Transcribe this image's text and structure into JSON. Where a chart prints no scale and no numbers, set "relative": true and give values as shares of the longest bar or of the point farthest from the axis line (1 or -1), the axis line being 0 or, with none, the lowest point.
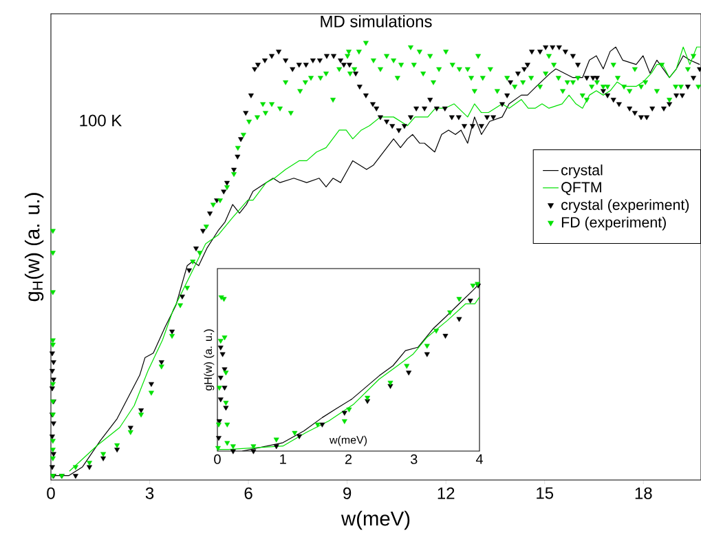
{
  "chart_data": [
    {
      "type": "line",
      "title": "MD simulations",
      "xlabel": "w(meV)",
      "ylabel": "g$_{H}$(w) (a. u.)",
      "annotations": [
        "100 K"
      ],
      "relative": true,
      "xlim": [
        0,
        19.75
      ],
      "xticks": [
        0,
        3,
        6,
        9,
        12,
        15,
        18
      ],
      "grid": false,
      "legend": "right",
      "series": [
        {
          "name": "crystal",
          "color": "#000000",
          "marker": "none",
          "x": [
            0.13,
            0.54,
            0.96,
            1.5,
            2.01,
            2.7,
            2.86,
            3.11,
            3.47,
            3.8,
            4.14,
            4.31,
            4.49,
            4.74,
            5.08,
            5.29,
            5.52,
            5.73,
            5.94,
            6.14,
            6.54,
            6.75,
            6.96,
            7.38,
            7.77,
            8.15,
            8.36,
            8.57,
            8.8,
            9.17,
            9.59,
            9.8,
            10.41,
            10.62,
            10.83,
            10.99,
            11.2,
            11.35,
            11.66,
            11.87,
            12.08,
            12.29,
            12.46,
            12.66,
            12.87,
            13.08,
            13.33,
            13.71,
            13.92,
            14.29,
            14.48,
            14.75,
            15.17,
            15.34,
            15.86,
            16.15,
            16.36,
            16.57,
            16.78,
            16.99,
            17.16,
            17.37,
            17.78,
            17.99,
            18.2,
            18.41,
            18.79,
            19.0,
            19.21,
            19.41,
            19.71
          ],
          "values": [
            0.01,
            0.01,
            0.03,
            0.09,
            0.14,
            0.24,
            0.28,
            0.29,
            0.35,
            0.4,
            0.49,
            0.5,
            0.49,
            0.53,
            0.57,
            0.59,
            0.63,
            0.61,
            0.63,
            0.66,
            0.68,
            0.69,
            0.68,
            0.69,
            0.68,
            0.69,
            0.67,
            0.69,
            0.68,
            0.73,
            0.71,
            0.72,
            0.78,
            0.76,
            0.78,
            0.79,
            0.77,
            0.77,
            0.75,
            0.79,
            0.8,
            0.79,
            0.8,
            0.77,
            0.83,
            0.79,
            0.82,
            0.83,
            0.86,
            0.88,
            0.88,
            0.9,
            0.93,
            0.94,
            0.92,
            0.92,
            0.96,
            0.97,
            0.94,
            0.98,
            0.99,
            0.96,
            0.95,
            0.97,
            0.93,
            0.96,
            0.92,
            0.94,
            0.97,
            0.96,
            0.95
          ]
        },
        {
          "name": "QFTM",
          "color": "#00e000",
          "marker": "none",
          "x": [
            0.56,
            1.42,
            2.09,
            2.53,
            2.95,
            3.39,
            3.72,
            4.05,
            4.31,
            4.7,
            5.08,
            5.52,
            5.98,
            6.14,
            6.54,
            6.79,
            7.13,
            7.54,
            7.77,
            8.07,
            8.36,
            8.76,
            8.97,
            9.17,
            9.43,
            9.68,
            10.01,
            10.41,
            10.83,
            11.06,
            11.45,
            11.68,
            11.97,
            12.25,
            12.66,
            12.87,
            13.08,
            13.29,
            13.71,
            13.92,
            14.29,
            14.5,
            14.71,
            14.92,
            15.13,
            15.53,
            15.74,
            15.95,
            16.15,
            16.36,
            16.57,
            16.78,
            16.99,
            17.2,
            17.41,
            17.78,
            17.99,
            18.24,
            18.41,
            18.58,
            18.79,
            19.0,
            19.21,
            19.41,
            19.62,
            19.73
          ],
          "values": [
            0.02,
            0.08,
            0.12,
            0.17,
            0.25,
            0.32,
            0.39,
            0.44,
            0.48,
            0.54,
            0.56,
            0.6,
            0.64,
            0.64,
            0.68,
            0.69,
            0.71,
            0.73,
            0.73,
            0.75,
            0.76,
            0.8,
            0.8,
            0.78,
            0.8,
            0.81,
            0.83,
            0.83,
            0.81,
            0.83,
            0.83,
            0.85,
            0.85,
            0.86,
            0.83,
            0.86,
            0.84,
            0.84,
            0.86,
            0.85,
            0.87,
            0.85,
            0.85,
            0.86,
            0.85,
            0.86,
            0.88,
            0.86,
            0.85,
            0.88,
            0.89,
            0.88,
            0.89,
            0.91,
            0.9,
            0.9,
            0.91,
            0.93,
            0.95,
            0.95,
            0.92,
            0.94,
            0.99,
            0.95,
            0.99,
            0.99
          ]
        },
        {
          "name": "crystal (experiment)",
          "type": "scatter",
          "color": "#000000",
          "marker": "triangle",
          "x": [
            0.04,
            0.08,
            0.04,
            0.08,
            0.04,
            0.08,
            0.04,
            0.08,
            0.04,
            0.08,
            0.04,
            0.08,
            0.33,
            0.75,
            1.17,
            1.59,
            2.01,
            2.42,
            2.74,
            3.05,
            3.36,
            3.68,
            3.99,
            4.2,
            4.41,
            4.62,
            4.83,
            5.04,
            5.25,
            5.35,
            5.56,
            5.67,
            5.77,
            5.92,
            6.08,
            6.19,
            6.29,
            6.5,
            6.71,
            6.92,
            7.13,
            7.34,
            7.54,
            7.75,
            7.96,
            8.17,
            8.38,
            8.59,
            8.8,
            8.9,
            9.07,
            9.26,
            9.38,
            9.57,
            9.78,
            9.89,
            10.01,
            10.2,
            10.37,
            10.57,
            10.74,
            10.93,
            11.1,
            11.35,
            11.52,
            11.72,
            11.97,
            12.18,
            12.39,
            12.56,
            12.81,
            13.08,
            13.25,
            13.44,
            13.71,
            13.86,
            13.96,
            14.19,
            14.38,
            14.48,
            14.61,
            14.86,
            15.03,
            15.24,
            15.44,
            15.63,
            15.86,
            16.01,
            16.28,
            16.47,
            16.59,
            16.78,
            16.91,
            17.09,
            17.26,
            17.58,
            17.74,
            17.93,
            18.1,
            18.27,
            18.62,
            18.79,
            19.0,
            19.18,
            19.35,
            19.52,
            19.71
          ],
          "values": [
            0.29,
            0.27,
            0.25,
            0.23,
            0.21,
            0.18,
            0.15,
            0.13,
            0.1,
            0.06,
            0.03,
            0.01,
            0.01,
            0.01,
            0.03,
            0.05,
            0.07,
            0.12,
            0.16,
            0.22,
            0.27,
            0.34,
            0.42,
            0.48,
            0.53,
            0.57,
            0.61,
            0.64,
            0.66,
            0.68,
            0.71,
            0.74,
            0.78,
            0.84,
            0.88,
            0.94,
            0.95,
            0.96,
            0.97,
            0.98,
            0.96,
            0.94,
            0.95,
            0.95,
            0.96,
            0.96,
            0.97,
            0.97,
            0.96,
            0.95,
            0.95,
            0.93,
            0.9,
            0.88,
            0.86,
            0.85,
            0.83,
            0.82,
            0.81,
            0.8,
            0.81,
            0.83,
            0.85,
            0.85,
            0.87,
            0.85,
            0.85,
            0.83,
            0.83,
            0.81,
            0.81,
            0.81,
            0.83,
            0.83,
            0.86,
            0.88,
            0.91,
            0.93,
            0.94,
            0.95,
            0.98,
            0.98,
            0.99,
            0.99,
            0.99,
            0.98,
            0.97,
            0.95,
            0.92,
            0.92,
            0.92,
            0.89,
            0.88,
            0.87,
            0.86,
            0.85,
            0.84,
            0.83,
            0.83,
            0.85,
            0.85,
            0.86,
            0.88,
            0.88,
            0.9,
            0.92,
            0.94
          ]
        },
        {
          "name": "FD (experiment)",
          "type": "scatter",
          "color": "#00e000",
          "marker": "triangle",
          "x": [
            0.06,
            0.06,
            0.06,
            0.06,
            0.06,
            0.06,
            0.06,
            0.06,
            0.06,
            0.06,
            0.06,
            0.06,
            0.33,
            0.75,
            1.17,
            1.59,
            2.01,
            2.42,
            2.74,
            3.05,
            3.36,
            3.68,
            3.93,
            4.14,
            4.31,
            4.52,
            4.72,
            4.93,
            5.14,
            5.35,
            5.56,
            5.68,
            5.85,
            6.02,
            6.27,
            6.44,
            6.52,
            6.71,
            6.96,
            7.13,
            7.29,
            7.57,
            7.73,
            7.9,
            8.19,
            8.36,
            8.57,
            8.76,
            9.01,
            9.09,
            9.05,
            9.22,
            9.36,
            9.57,
            9.8,
            10.01,
            10.2,
            10.41,
            10.53,
            10.64,
            10.93,
            11.03,
            11.2,
            11.31,
            11.52,
            11.62,
            11.79,
            12.0,
            12.2,
            12.41,
            12.66,
            12.77,
            12.87,
            12.98,
            13.12,
            13.35,
            13.56,
            13.86,
            14.09,
            14.34,
            14.59,
            14.86,
            15.03,
            15.13,
            15.28,
            15.42,
            15.55,
            15.69,
            15.86,
            16.01,
            16.15,
            16.28,
            16.43,
            16.59,
            16.78,
            16.91,
            17.09,
            17.22,
            17.41,
            17.58,
            17.74,
            17.93,
            18.06,
            18.41,
            18.56,
            18.79,
            18.98,
            19.14,
            19.35,
            19.52,
            19.67
          ],
          "values": [
            0.57,
            0.52,
            0.43,
            0.32,
            0.31,
            0.22,
            0.18,
            0.15,
            0.09,
            0.07,
            0.05,
            0.01,
            0.01,
            0.03,
            0.04,
            0.06,
            0.08,
            0.11,
            0.15,
            0.2,
            0.26,
            0.33,
            0.4,
            0.44,
            0.5,
            0.52,
            0.58,
            0.63,
            0.64,
            0.67,
            0.7,
            0.76,
            0.79,
            0.82,
            0.83,
            0.86,
            0.84,
            0.86,
            0.85,
            0.91,
            0.84,
            0.89,
            0.91,
            0.92,
            0.92,
            0.93,
            0.87,
            0.94,
            0.97,
            0.93,
            0.98,
            0.94,
            0.98,
            1.0,
            0.96,
            0.94,
            0.97,
            0.96,
            0.92,
            0.95,
            0.99,
            0.95,
            0.98,
            0.93,
            0.97,
            0.91,
            0.94,
            0.98,
            0.95,
            0.94,
            0.94,
            0.92,
            0.89,
            0.97,
            0.92,
            0.94,
            0.89,
            0.92,
            0.9,
            0.91,
            0.92,
            0.9,
            0.93,
            0.97,
            0.95,
            0.92,
            0.89,
            0.91,
            0.91,
            0.92,
            0.88,
            0.87,
            0.9,
            0.91,
            0.9,
            0.9,
            0.95,
            0.92,
            0.9,
            0.89,
            0.94,
            0.9,
            0.91,
            0.89,
            0.95,
            0.87,
            0.9,
            0.9,
            0.94,
            0.97,
            0.9
          ]
        }
      ]
    },
    {
      "type": "line",
      "xlabel": "w(meV)",
      "ylabel": "gH(w) (a. u.)",
      "relative": true,
      "xlim": [
        0,
        4
      ],
      "xticks": [
        0,
        1,
        2,
        3,
        4
      ],
      "grid": false,
      "legend": false,
      "series": [
        {
          "color": "#000000",
          "marker": "none",
          "x": [
            0.38,
            1.0,
            1.32,
            1.6,
            1.8,
            2.05,
            2.26,
            2.47,
            2.68,
            2.87,
            3.06,
            3.29,
            3.48,
            3.69,
            3.9,
            4.0
          ],
          "values": [
            0.0,
            0.05,
            0.12,
            0.2,
            0.25,
            0.31,
            0.38,
            0.45,
            0.51,
            0.6,
            0.62,
            0.73,
            0.8,
            0.88,
            0.96,
            1.0
          ]
        },
        {
          "color": "#00e000",
          "marker": "none",
          "x": [
            0.0,
            0.17,
            1.0,
            1.35,
            1.7,
            2.08,
            2.47,
            2.75,
            2.99,
            3.2,
            3.51,
            3.79,
            3.93,
            4.0
          ],
          "values": [
            0.01,
            0.01,
            0.03,
            0.11,
            0.18,
            0.28,
            0.43,
            0.51,
            0.58,
            0.68,
            0.78,
            0.88,
            0.88,
            0.92
          ]
        },
        {
          "type": "scatter",
          "color": "#000000",
          "marker": "triangle",
          "x": [
            0.05,
            0.08,
            0.11,
            0.05,
            0.11,
            0.05,
            0.13,
            0.03,
            0.02,
            0.24,
            0.55,
            0.9,
            1.25,
            1.6,
            1.94,
            2.29,
            2.64,
            2.92,
            3.2,
            3.48,
            3.69,
            3.86,
            3.98
          ],
          "values": [
            0.62,
            0.58,
            0.49,
            0.44,
            0.38,
            0.31,
            0.26,
            0.18,
            0.08,
            0.0,
            0.0,
            0.03,
            0.09,
            0.16,
            0.23,
            0.3,
            0.39,
            0.47,
            0.58,
            0.69,
            0.79,
            0.9,
            0.99
          ]
        },
        {
          "type": "scatter",
          "color": "#00e000",
          "marker": "triangle",
          "x": [
            0.06,
            0.1,
            0.11,
            0.05,
            0.13,
            0.03,
            0.13,
            0.02,
            0.15,
            0.15,
            0.01,
            0.24,
            0.55,
            0.9,
            1.18,
            1.53,
            1.94,
            2.01,
            2.29,
            2.64,
            2.89,
            3.2,
            3.34,
            3.55,
            3.69,
            3.9,
            3.97
          ],
          "values": [
            0.92,
            0.91,
            0.68,
            0.66,
            0.47,
            0.38,
            0.29,
            0.16,
            0.16,
            0.05,
            0.02,
            0.03,
            0.03,
            0.07,
            0.11,
            0.16,
            0.18,
            0.25,
            0.32,
            0.41,
            0.51,
            0.63,
            0.72,
            0.83,
            0.91,
            0.99,
            1.0
          ]
        }
      ]
    }
  ]
}
